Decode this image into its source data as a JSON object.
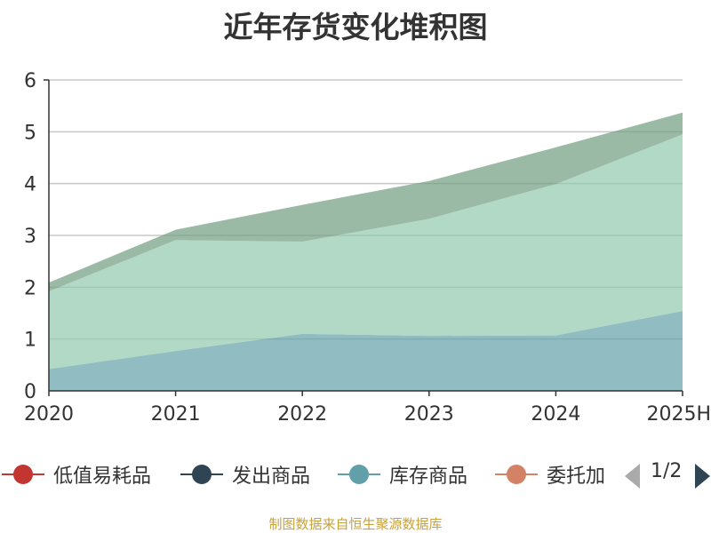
{
  "title": "近年存货变化堆积图",
  "source_note": "制图数据来自恒生聚源数据库",
  "legend": {
    "page": "1/2",
    "items": [
      {
        "label": "低值易耗品",
        "color": "#c23531"
      },
      {
        "label": "发出商品",
        "color": "#2f4554"
      },
      {
        "label": "库存商品",
        "color": "#61a0a8"
      },
      {
        "label": "委托加",
        "color": "#d48265"
      }
    ]
  },
  "chart_data": {
    "type": "area",
    "stacked": true,
    "title": "近年存货变化堆积图",
    "x": [
      "2020",
      "2021",
      "2022",
      "2023",
      "2024",
      "2025H"
    ],
    "ylim": [
      0,
      6
    ],
    "yticks": [
      "0",
      "1",
      "2",
      "3",
      "4",
      "5",
      "6"
    ],
    "grid": true,
    "legend_position": "bottom",
    "series": [
      {
        "name": "低值易耗品",
        "color": "#c23531",
        "values": [
          0.0,
          0.0,
          0.0,
          0.0,
          0.0,
          0.0
        ]
      },
      {
        "name": "发出商品",
        "color": "#2f4554",
        "values": [
          0.0,
          0.0,
          0.0,
          0.0,
          0.0,
          0.0
        ]
      },
      {
        "name": "库存商品",
        "color": "#61a0a8",
        "values": [
          0.42,
          0.77,
          1.1,
          1.06,
          1.07,
          1.54
        ]
      },
      {
        "name": "委托加",
        "color": "#d48265",
        "values": [
          0.0,
          0.0,
          0.0,
          0.0,
          0.0,
          0.0
        ]
      },
      {
        "color": "#91c7ae",
        "values": [
          1.5,
          2.14,
          1.78,
          2.26,
          2.92,
          3.41
        ]
      },
      {
        "color": "#749f83",
        "values": [
          0.17,
          0.2,
          0.71,
          0.73,
          0.71,
          0.42
        ]
      }
    ]
  }
}
